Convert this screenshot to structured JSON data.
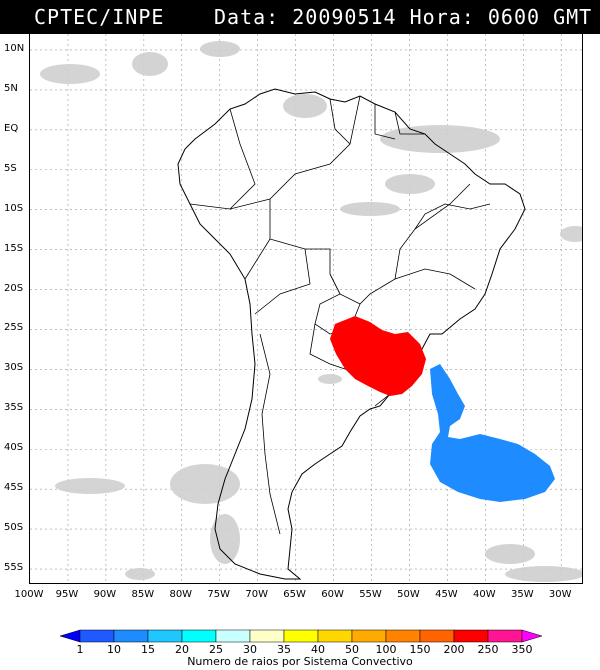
{
  "header": {
    "source": "CPTEC/INPE",
    "date_time": "Data: 20090514 Hora: 0600 GMT"
  },
  "map": {
    "lat_labels": [
      "10N",
      "5N",
      "EQ",
      "5S",
      "10S",
      "15S",
      "20S",
      "25S",
      "30S",
      "35S",
      "40S",
      "45S",
      "50S",
      "55S"
    ],
    "lon_labels": [
      "100W",
      "95W",
      "90W",
      "85W",
      "80W",
      "75W",
      "70W",
      "65W",
      "60W",
      "55W",
      "50W",
      "45W",
      "40W",
      "35W",
      "30W"
    ],
    "convective_systems": [
      {
        "color": "#ff0000",
        "center_lon": -54,
        "center_lat": -28
      },
      {
        "color": "#1e8cff",
        "center_lon": -39,
        "center_lat": -38
      }
    ]
  },
  "colorbar": {
    "levels": [
      "1",
      "10",
      "15",
      "20",
      "25",
      "30",
      "35",
      "40",
      "50",
      "100",
      "150",
      "200",
      "250",
      "350"
    ],
    "colors": [
      "#0000ff",
      "#1e5aff",
      "#1e8cff",
      "#1ec8ff",
      "#00ffff",
      "#c8ffff",
      "#ffffc8",
      "#ffff00",
      "#ffd700",
      "#ffaa00",
      "#ff8200",
      "#ff6400",
      "#ff0000",
      "#ff1493",
      "#ff00ff"
    ],
    "title": "Numero de raios por Sistema Convectivo"
  }
}
